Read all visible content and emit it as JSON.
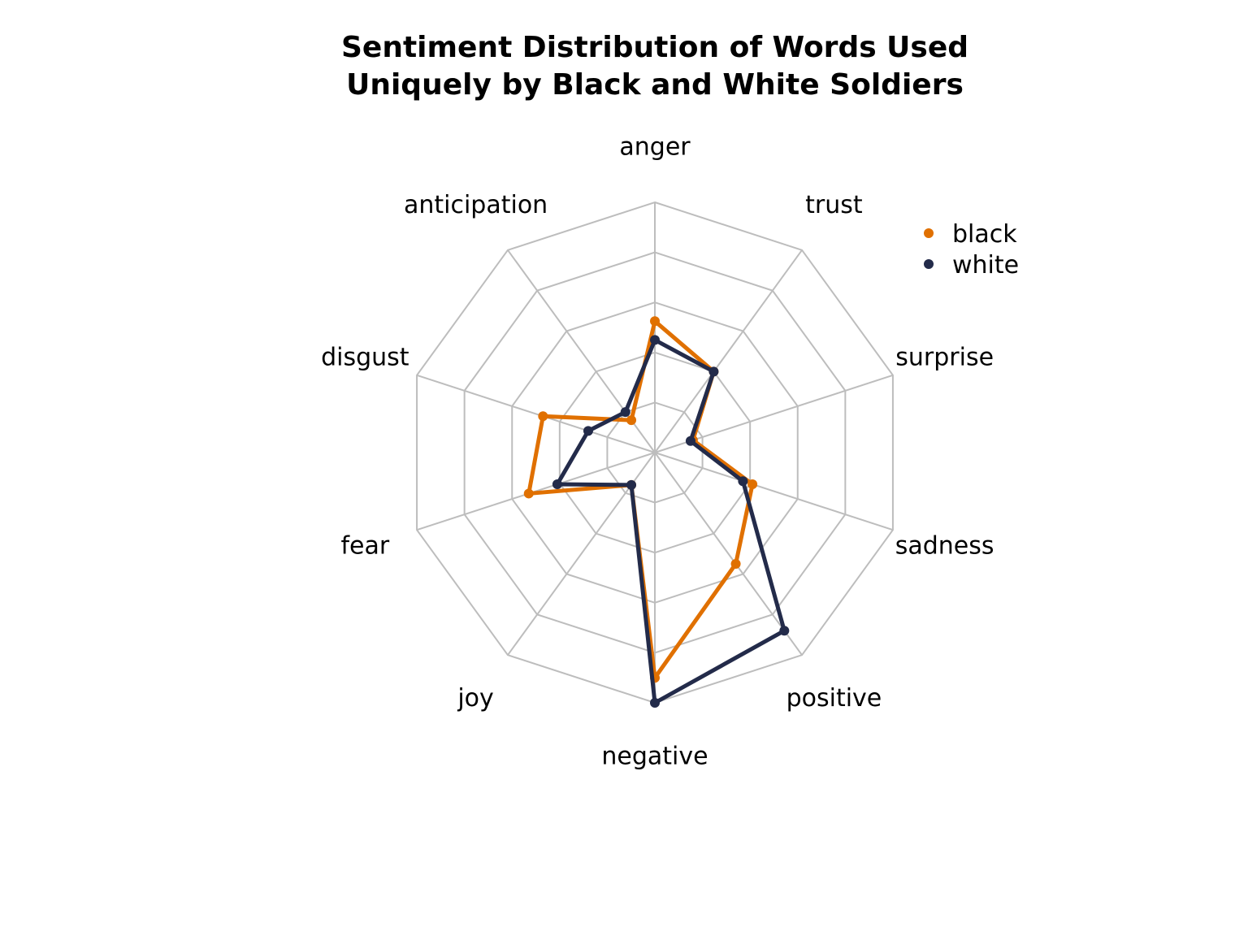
{
  "chart_data": {
    "type": "radar",
    "title": "Sentiment Distribution of Words Used",
    "title_line2": "Uniquely by Black and White Soldiers",
    "axes": [
      "anger",
      "trust",
      "surprise",
      "sadness",
      "positive",
      "negative",
      "joy",
      "fear",
      "disgust",
      "anticipation"
    ],
    "rlim": [
      0,
      1
    ],
    "grid_levels": 5,
    "series": [
      {
        "name": "black",
        "color": "#E07000",
        "values": [
          0.525,
          0.4,
          0.16,
          0.41,
          0.55,
          0.9,
          0.16,
          0.53,
          0.47,
          0.16
        ]
      },
      {
        "name": "white",
        "color": "#232B4A",
        "values": [
          0.45,
          0.4,
          0.15,
          0.37,
          0.88,
          1.0,
          0.16,
          0.41,
          0.28,
          0.2
        ]
      }
    ],
    "legend": [
      {
        "label": "black",
        "color": "#E07000"
      },
      {
        "label": "white",
        "color": "#232B4A"
      }
    ]
  }
}
